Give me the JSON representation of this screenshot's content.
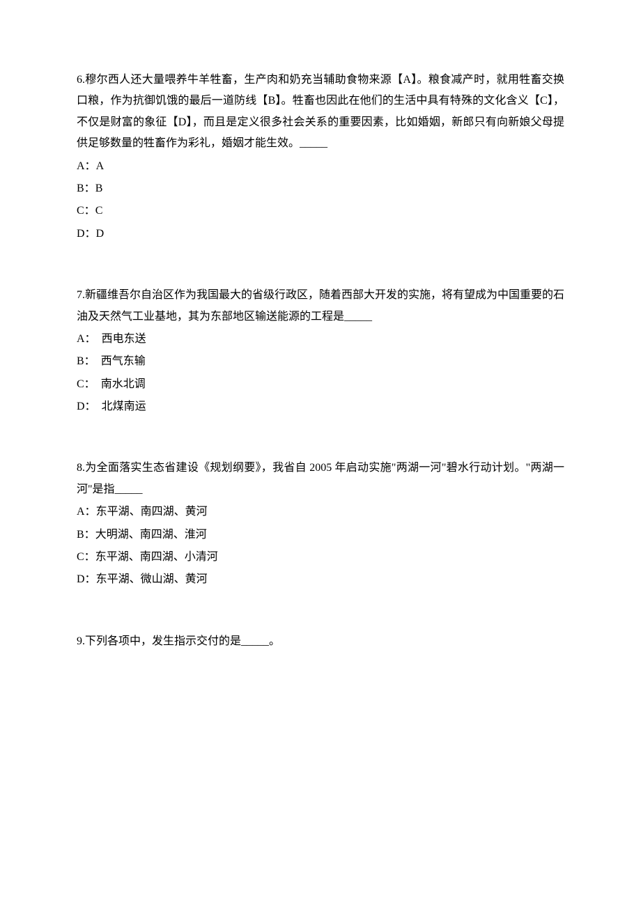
{
  "questions": [
    {
      "number": "6",
      "text": "穆尔西人还大量喂养牛羊牲畜，生产肉和奶充当辅助食物来源【A】。粮食减产时，就用牲畜交换口粮，作为抗御饥饿的最后一道防线【B】。牲畜也因此在他们的生活中具有特殊的文化含义【C】，不仅是财富的象征【D】，而且是定义很多社会关系的重要因素，比如婚姻，新郎只有向新娘父母提供足够数量的牲畜作为彩礼，婚姻才能生效。_____",
      "options": [
        {
          "label": "A：",
          "value": "A"
        },
        {
          "label": "B：",
          "value": "B"
        },
        {
          "label": "C：",
          "value": "C"
        },
        {
          "label": "D：",
          "value": "D"
        }
      ]
    },
    {
      "number": "7",
      "text": "新疆维吾尔自治区作为我国最大的省级行政区，随着西部大开发的实施，将有望成为中国重要的石油及天然气工业基地，其为东部地区输送能源的工程是_____",
      "options": [
        {
          "label": "A：　",
          "value": "西电东送"
        },
        {
          "label": "B：　",
          "value": "西气东输"
        },
        {
          "label": "C：　",
          "value": "南水北调"
        },
        {
          "label": "D：　",
          "value": "北煤南运"
        }
      ]
    },
    {
      "number": "8",
      "text": "为全面落实生态省建设《规划纲要》，我省自 2005 年启动实施\"两湖一河\"碧水行动计划。\"两湖一河\"是指_____",
      "options": [
        {
          "label": "A：",
          "value": "东平湖、南四湖、黄河"
        },
        {
          "label": "B：",
          "value": "大明湖、南四湖、淮河"
        },
        {
          "label": "C：",
          "value": "东平湖、南四湖、小清河"
        },
        {
          "label": "D：",
          "value": "东平湖、微山湖、黄河"
        }
      ]
    },
    {
      "number": "9",
      "text": "下列各项中，发生指示交付的是_____。",
      "options": []
    }
  ]
}
